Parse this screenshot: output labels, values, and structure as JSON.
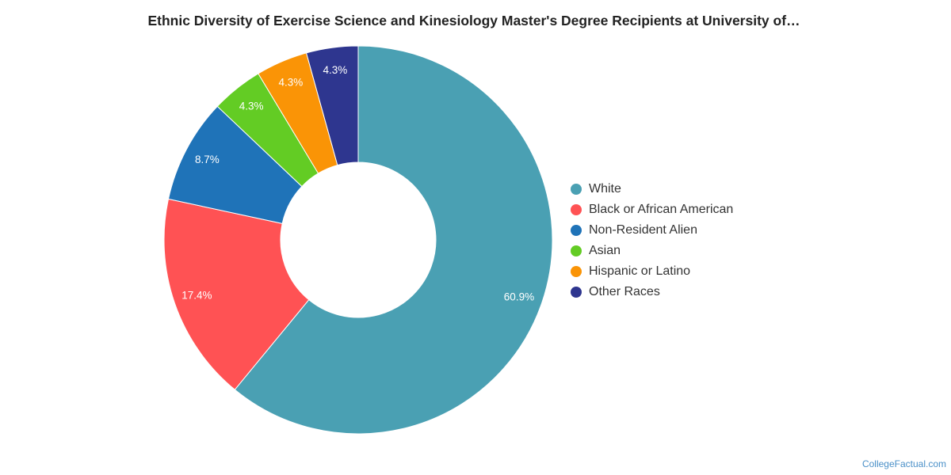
{
  "chart_data": {
    "type": "pie",
    "title": "Ethnic Diversity of Exercise Science and Kinesiology Master's Degree Recipients at University of…",
    "unit": "%",
    "donut": true,
    "legend_position": "right",
    "categories": [
      "White",
      "Black or African American",
      "Non-Resident Alien",
      "Asian",
      "Hispanic or Latino",
      "Other Races"
    ],
    "values": [
      60.9,
      17.4,
      8.7,
      4.3,
      4.3,
      4.3
    ],
    "labels": [
      "60.9%",
      "17.4%",
      "8.7%",
      "4.3%",
      "4.3%",
      "4.3%"
    ],
    "colors": [
      "#4aa0b3",
      "#ff5254",
      "#1f73b8",
      "#63cc24",
      "#fa9406",
      "#2e368f"
    ]
  },
  "watermark": "CollegeFactual.com"
}
